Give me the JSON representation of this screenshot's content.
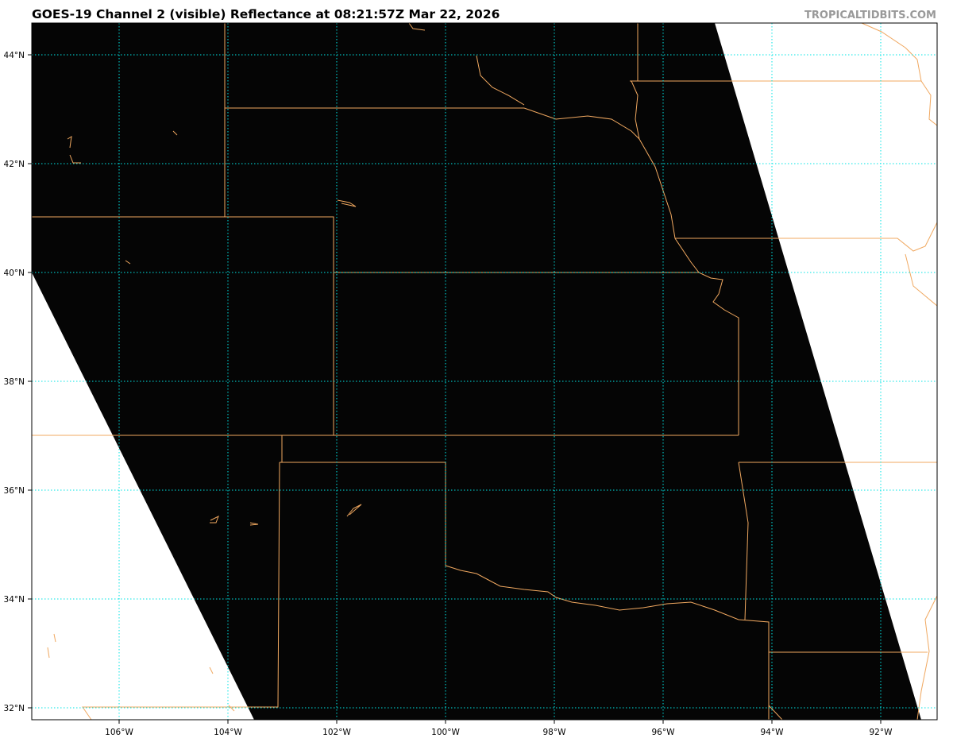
{
  "title": "GOES-19 Channel 2 (visible) Reflectance at 08:21:57Z Mar 22, 2026",
  "brand": "TROPICALTIDBITS.COM",
  "map": {
    "lat_labels": [
      "44°N",
      "42°N",
      "40°N",
      "38°N",
      "36°N",
      "34°N",
      "32°N"
    ],
    "lon_labels": [
      "106°W",
      "104°W",
      "102°W",
      "100°W",
      "98°W",
      "96°W",
      "94°W",
      "92°W"
    ],
    "colors": {
      "imagery": "#050505",
      "gridlines": "#00e5e5",
      "borders": "#f0a860",
      "no_data": "#ffffff"
    }
  }
}
